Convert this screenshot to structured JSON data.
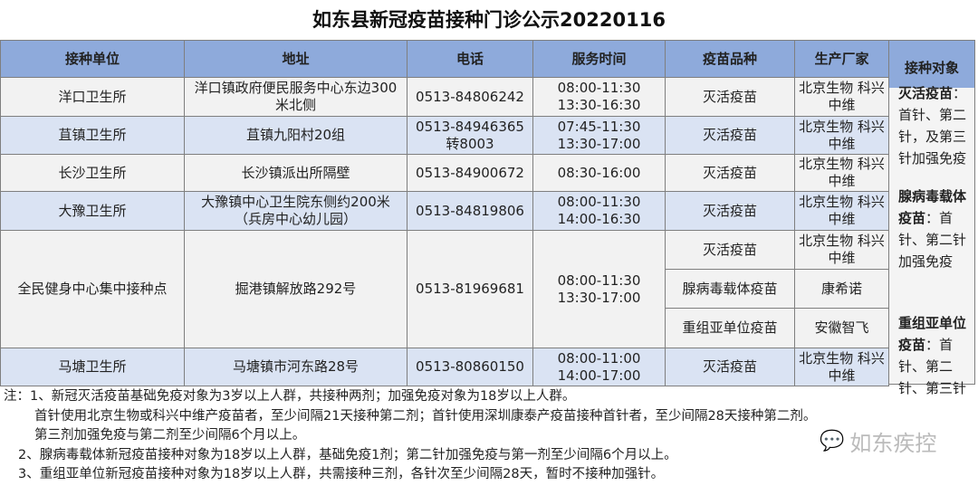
{
  "title": "如东县新冠疫苗接种门诊公示20220116",
  "headers": [
    "接种单位",
    "地址",
    "电话",
    "服务时间",
    "疫苗品种",
    "生产厂家",
    "接种对象"
  ],
  "rows": [
    {
      "unit": "洋口卫生所",
      "address": "洋口镇政府便民服务中心东边300米北侧",
      "phone": "0513-84806242",
      "hours": "08:00-11:30 13:30-16:30",
      "vaccine": "灭活疫苗",
      "maker": "北京生物 科兴中维"
    },
    {
      "unit": "苴镇卫生所",
      "address": "苴镇九阳村20组",
      "phone": "0513-84946365转8003",
      "hours": "07:45-11:30 13:30-17:00",
      "vaccine": "灭活疫苗",
      "maker": "北京生物 科兴中维"
    },
    {
      "unit": "长沙卫生所",
      "address": "长沙镇派出所隔壁",
      "phone": "0513-84900672",
      "hours": "08:30-16:00",
      "vaccine": "灭活疫苗",
      "maker": "北京生物 科兴中维"
    },
    {
      "unit": "大豫卫生所",
      "address": "大豫镇中心卫生院东侧约200米（兵房中心幼儿园）",
      "phone": "0513-84819806",
      "hours": "08:00-11:30 14:00-16:30",
      "vaccine": "灭活疫苗",
      "maker": "北京生物 科兴中维"
    },
    {
      "unit": "全民健身中心集中接种点",
      "address": "掘港镇解放路292号",
      "phone": "0513-81969681",
      "hours": "08:00-11:30 13:30-17:00",
      "vaccines": [
        {
          "vaccine": "灭活疫苗",
          "maker": "北京生物 科兴中维"
        },
        {
          "vaccine": "腺病毒载体疫苗",
          "maker": "康希诺"
        },
        {
          "vaccine": "重组亚单位疫苗",
          "maker": "安徽智飞"
        }
      ]
    },
    {
      "unit": "马塘卫生所",
      "address": "马塘镇市河东路28号",
      "phone": "0513-80860150",
      "hours": "08:00-11:00 14:00-17:00",
      "vaccine": "灭活疫苗",
      "maker": "北京生物 科兴中维"
    }
  ],
  "targets": [
    {
      "name": "灭活疫苗",
      "text": "：首针、第二针，及第三针加强免疫"
    },
    {
      "name": "腺病毒载体疫苗",
      "text": "：首针、第二针加强免疫"
    },
    {
      "name": "重组亚单位疫苗",
      "text": "：首针、第二针、第三针"
    }
  ],
  "notes": [
    "注：1、新冠灭活疫苗基础免疫对象为3岁以上人群，共接种两剂；加强免疫对象为18岁以上人群。",
    "首针使用北京生物或科兴中维产疫苗者，至少间隔21天接种第二剂；首针使用深圳康泰产疫苗接种首针者，至少间隔28天接种第二剂。",
    "第三剂加强免疫与第二剂至少间隔6个月以上。",
    "2、腺病毒载体新冠疫苗接种对象为18岁以上人群，基础免疫1剂；第二针加强免疫与第一剂至少间隔6个月以上。",
    "3、重组亚单位新冠疫苗接种对象为18岁以上人群，共需接种三剂，各针次至少间隔28天，暂时不接种加强针。"
  ],
  "watermark": "如东疾控"
}
